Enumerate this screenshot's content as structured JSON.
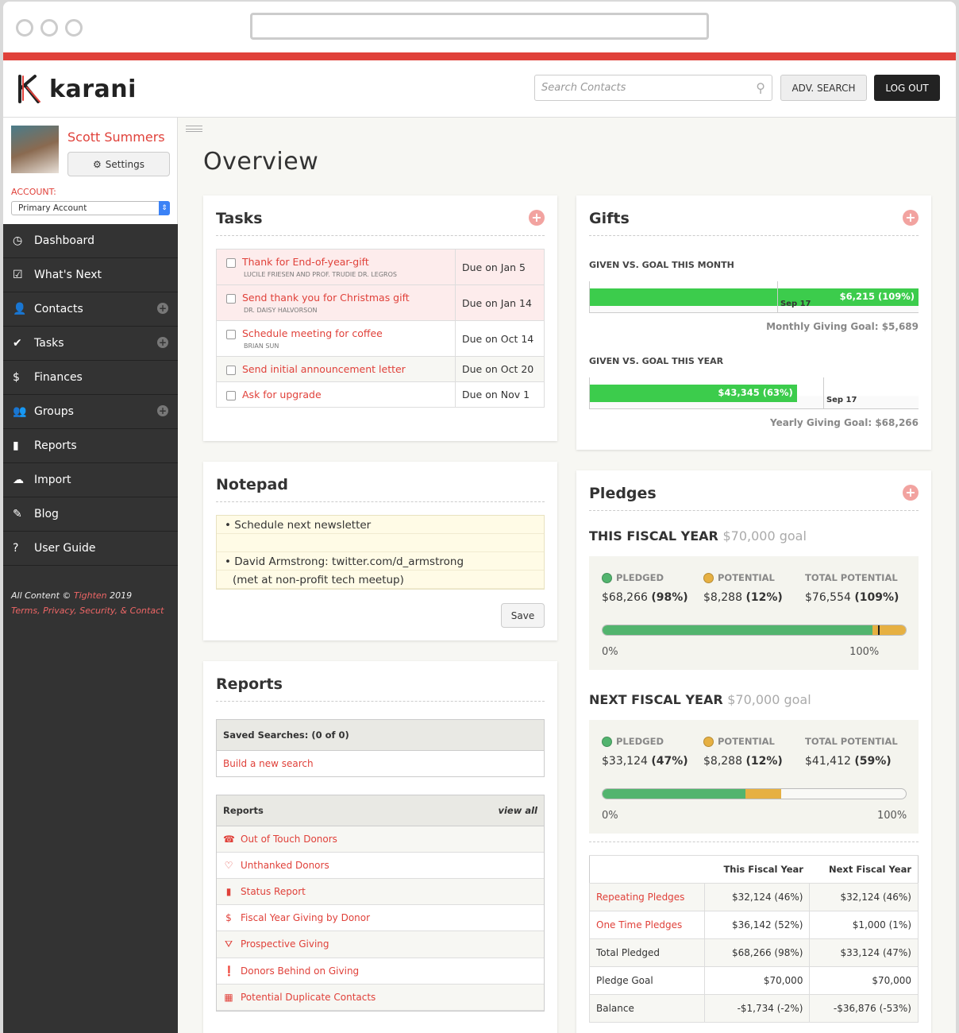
{
  "header": {
    "logo": "karani",
    "search_placeholder": "Search Contacts",
    "adv_search": "ADV. SEARCH",
    "logout": "LOG OUT"
  },
  "profile": {
    "name": "Scott Summers",
    "settings": "Settings",
    "account_label": "ACCOUNT:",
    "account_value": "Primary Account"
  },
  "nav": [
    {
      "label": "Dashboard",
      "icon": "◷"
    },
    {
      "label": "What's Next",
      "icon": "☑"
    },
    {
      "label": "Contacts",
      "icon": "👤",
      "plus": true
    },
    {
      "label": "Tasks",
      "icon": "✔",
      "plus": true
    },
    {
      "label": "Finances",
      "icon": "$"
    },
    {
      "label": "Groups",
      "icon": "👥",
      "plus": true
    },
    {
      "label": "Reports",
      "icon": "▮"
    },
    {
      "label": "Import",
      "icon": "☁"
    },
    {
      "label": "Blog",
      "icon": "✎"
    },
    {
      "label": "User Guide",
      "icon": "?"
    }
  ],
  "footer": {
    "prefix": "All Content © ",
    "brand": "Tighten",
    "year": " 2019",
    "links": "Terms, Privacy, Security, & Contact"
  },
  "page_title": "Overview",
  "tasks": {
    "title": "Tasks",
    "items": [
      {
        "title": "Thank for End-of-year-gift",
        "contact": "LUCILE FRIESEN AND PROF. TRUDIE DR. LEGROS",
        "due": "Due on Jan 5",
        "overdue": true
      },
      {
        "title": "Send thank you for Christmas gift",
        "contact": "DR. DAISY HALVORSON",
        "due": "Due on Jan 14",
        "overdue": true
      },
      {
        "title": "Schedule meeting for coffee",
        "contact": "BRIAN SUN",
        "due": "Due on Oct 14",
        "overdue": false
      },
      {
        "title": "Send initial announcement letter",
        "contact": "",
        "due": "Due on Oct 20",
        "overdue": false
      },
      {
        "title": "Ask for upgrade",
        "contact": "",
        "due": "Due on Nov 1",
        "overdue": false
      }
    ]
  },
  "gifts": {
    "title": "Gifts",
    "month": {
      "label": "GIVEN VS. GOAL THIS MONTH",
      "value": "$6,215 (109%)",
      "percent": 109,
      "today": "Sep 17",
      "today_pct": 57,
      "goal": "Monthly Giving Goal: $5,689"
    },
    "year": {
      "label": "GIVEN VS. GOAL THIS YEAR",
      "value": "$43,345 (63%)",
      "percent": 63,
      "today": "Sep 17",
      "today_pct": 71,
      "goal": "Yearly Giving Goal: $68,266"
    }
  },
  "notepad": {
    "title": "Notepad",
    "lines": [
      "• Schedule next newsletter",
      "",
      "• David Armstrong: twitter.com/d_armstrong",
      "(met at non-profit tech meetup)"
    ],
    "save": "Save"
  },
  "reports": {
    "title": "Reports",
    "saved_header": "Saved Searches: (0 of 0)",
    "build": "Build a new search",
    "list_header": "Reports",
    "view_all": "view all",
    "items": [
      {
        "label": "Out of Touch Donors",
        "icon": "☎"
      },
      {
        "label": "Unthanked Donors",
        "icon": "♡"
      },
      {
        "label": "Status Report",
        "icon": "▮"
      },
      {
        "label": "Fiscal Year Giving by Donor",
        "icon": "$"
      },
      {
        "label": "Prospective Giving",
        "icon": "⛛"
      },
      {
        "label": "Donors Behind on Giving",
        "icon": "❗"
      },
      {
        "label": "Potential Duplicate Contacts",
        "icon": "▦"
      }
    ]
  },
  "pledges": {
    "title": "Pledges",
    "colors": {
      "pledged": "#52b46e",
      "potential": "#e6b042"
    },
    "years": [
      {
        "label": "THIS FISCAL YEAR",
        "goal": "$70,000 goal",
        "pledged_label": "PLEDGED",
        "pledged": "$68,266",
        "pledged_pct": "(98%)",
        "potential_label": "POTENTIAL",
        "potential": "$8,288",
        "potential_pct": "(12%)",
        "total_label": "TOTAL POTENTIAL",
        "total": "$76,554",
        "total_pct": "(109%)",
        "p": 98,
        "q": 12,
        "zero": "0%",
        "hundred": "100%"
      },
      {
        "label": "NEXT FISCAL YEAR",
        "goal": "$70,000 goal",
        "pledged_label": "PLEDGED",
        "pledged": "$33,124",
        "pledged_pct": "(47%)",
        "potential_label": "POTENTIAL",
        "potential": "$8,288",
        "potential_pct": "(12%)",
        "total_label": "TOTAL POTENTIAL",
        "total": "$41,412",
        "total_pct": "(59%)",
        "p": 47,
        "q": 12,
        "zero": "0%",
        "hundred": "100%"
      }
    ],
    "table": {
      "headers": [
        "",
        "This Fiscal Year",
        "Next Fiscal Year"
      ],
      "rows": [
        [
          "Repeating Pledges",
          "$32,124 (46%)",
          "$32,124 (46%)"
        ],
        [
          "One Time Pledges",
          "$36,142 (52%)",
          "$1,000 (1%)"
        ],
        [
          "Total Pledged",
          "$68,266 (98%)",
          "$33,124 (47%)"
        ],
        [
          "Pledge Goal",
          "$70,000",
          "$70,000"
        ],
        [
          "Balance",
          "-$1,734  (-2%)",
          "-$36,876  (-53%)"
        ]
      ]
    }
  }
}
